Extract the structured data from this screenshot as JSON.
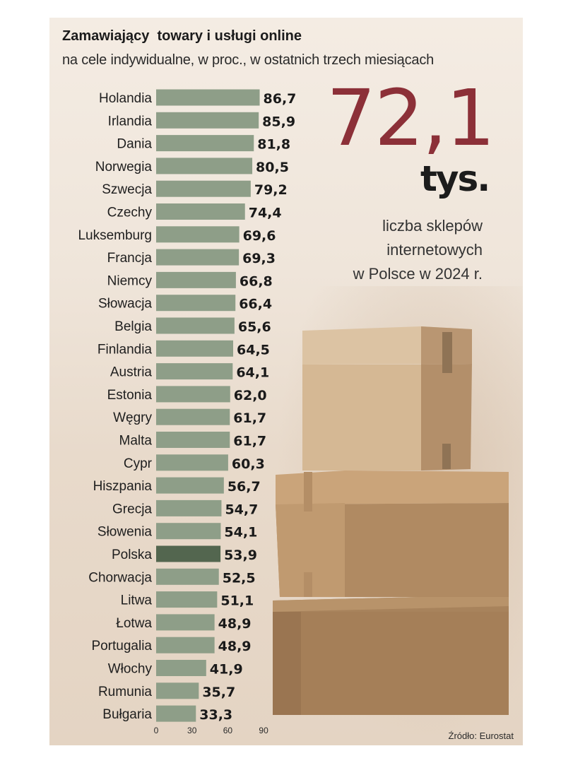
{
  "title": "Zamawiający  towary i usługi online",
  "subtitle": "na cele indywidualne, w proc., w ostatnich trzech miesiącach",
  "highlight": {
    "value": "72,1",
    "unit": "tys.",
    "caption_lines": [
      "liczba sklepów",
      "internetowych",
      "w Polsce w 2024 r."
    ]
  },
  "source": "Źródło: Eurostat",
  "colors": {
    "bar": "#8e9e88",
    "bar_highlight": "#53664f",
    "big_number": "#8c3038",
    "background": "#f2e9df"
  },
  "chart_data": {
    "type": "bar",
    "orientation": "horizontal",
    "title": "Zamawiający  towary i usługi online",
    "subtitle": "na cele indywidualne, w proc., w ostatnich trzech miesiącach",
    "categories": [
      "Holandia",
      "Irlandia",
      "Dania",
      "Norwegia",
      "Szwecja",
      "Czechy",
      "Luksemburg",
      "Francja",
      "Niemcy",
      "Słowacja",
      "Belgia",
      "Finlandia",
      "Austria",
      "Estonia",
      "Węgry",
      "Malta",
      "Cypr",
      "Hiszpania",
      "Grecja",
      "Słowenia",
      "Polska",
      "Chorwacja",
      "Litwa",
      "Łotwa",
      "Portugalia",
      "Włochy",
      "Rumunia",
      "Bułgaria"
    ],
    "values": [
      86.7,
      85.9,
      81.8,
      80.5,
      79.2,
      74.4,
      69.6,
      69.3,
      66.8,
      66.4,
      65.6,
      64.5,
      64.1,
      62.0,
      61.7,
      61.7,
      60.3,
      56.7,
      54.7,
      54.1,
      53.9,
      52.5,
      51.1,
      48.9,
      48.9,
      41.9,
      35.7,
      33.3
    ],
    "value_labels": [
      "86,7",
      "85,9",
      "81,8",
      "80,5",
      "79,2",
      "74,4",
      "69,6",
      "69,3",
      "66,8",
      "66,4",
      "65,6",
      "64,5",
      "64,1",
      "62,0",
      "61,7",
      "61,7",
      "60,3",
      "56,7",
      "54,7",
      "54,1",
      "53,9",
      "52,5",
      "51,1",
      "48,9",
      "48,9",
      "41,9",
      "35,7",
      "33,3"
    ],
    "highlighted_category": "Polska",
    "xticks": [
      "0",
      "30",
      "60",
      "90"
    ],
    "xtick_values": [
      0,
      30,
      60,
      90
    ],
    "xlim": [
      0,
      90
    ],
    "grid": false,
    "legend": "none"
  }
}
